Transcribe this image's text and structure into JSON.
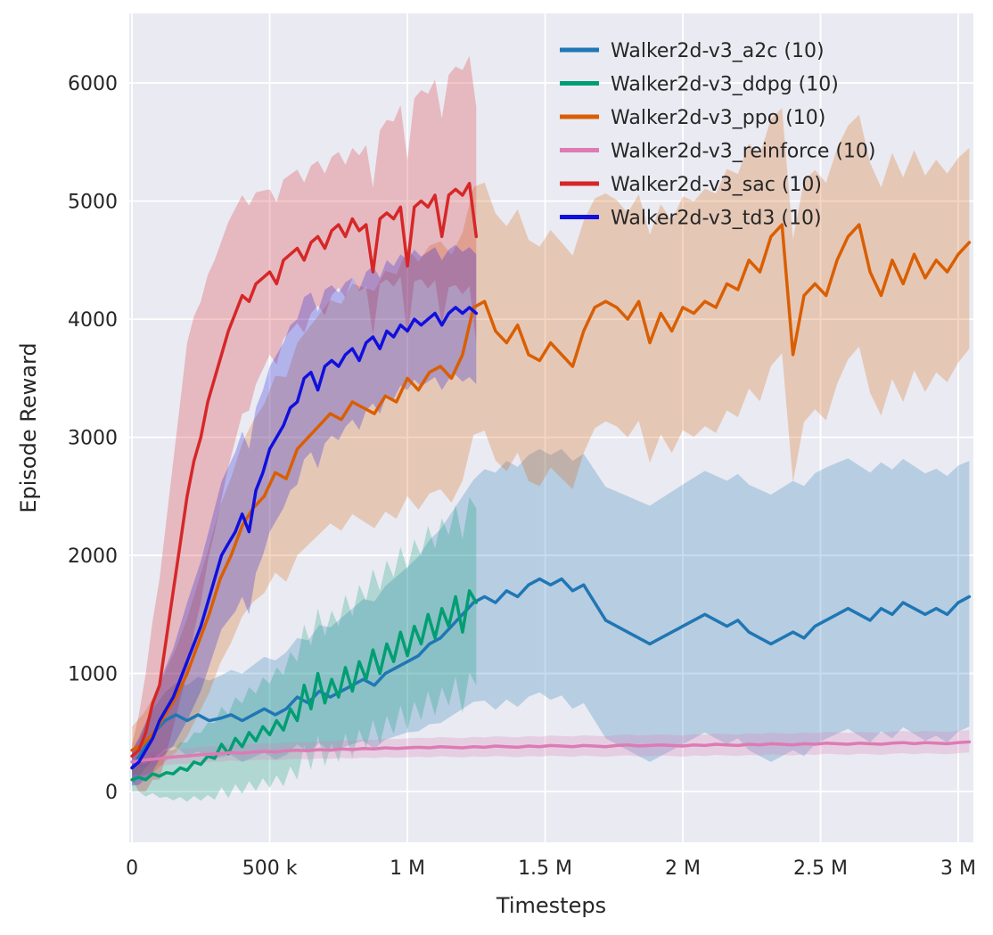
{
  "chart_data": {
    "type": "line",
    "title": "",
    "xlabel": "Timesteps",
    "ylabel": "Episode Reward",
    "x_values_unit": "millions of timesteps",
    "xlim": [
      -0.01,
      3.055
    ],
    "ylim": [
      -430,
      6590
    ],
    "grid": true,
    "legend_position": "upper right",
    "axes_background": "#eaeaf2",
    "grid_color": "#ffffff",
    "text_color": "#262626",
    "band_opacity": 0.25,
    "xticks": [
      {
        "v": 0,
        "label": "0"
      },
      {
        "v": 0.5,
        "label": "500 k"
      },
      {
        "v": 1,
        "label": "1 M"
      },
      {
        "v": 1.5,
        "label": "1.5 M"
      },
      {
        "v": 2,
        "label": "2 M"
      },
      {
        "v": 2.5,
        "label": "2.5 M"
      },
      {
        "v": 3,
        "label": "3 M"
      }
    ],
    "yticks": [
      {
        "v": 0,
        "label": "0"
      },
      {
        "v": 1000,
        "label": "1000"
      },
      {
        "v": 2000,
        "label": "2000"
      },
      {
        "v": 3000,
        "label": "3000"
      },
      {
        "v": 4000,
        "label": "4000"
      },
      {
        "v": 5000,
        "label": "5000"
      },
      {
        "v": 6000,
        "label": "6000"
      }
    ],
    "series": [
      {
        "key": "a2c",
        "name": "Walker2d-v3_a2c (10)",
        "color": "#1f77b4",
        "x0": 0,
        "dx": 0.04,
        "y": [
          200,
          350,
          500,
          600,
          650,
          600,
          650,
          600,
          620,
          650,
          600,
          650,
          700,
          650,
          700,
          800,
          750,
          850,
          800,
          850,
          900,
          950,
          900,
          1000,
          1050,
          1100,
          1150,
          1250,
          1300,
          1400,
          1500,
          1600,
          1650,
          1600,
          1700,
          1650,
          1750,
          1800,
          1750,
          1800,
          1700,
          1750,
          1600,
          1450,
          1400,
          1350,
          1300,
          1250,
          1300,
          1350,
          1400,
          1450,
          1500,
          1450,
          1400,
          1450,
          1350,
          1300,
          1250,
          1300,
          1350,
          1300,
          1400,
          1450,
          1500,
          1550,
          1500,
          1450,
          1550,
          1500,
          1600,
          1550,
          1500,
          1550,
          1500,
          1600,
          1650
        ],
        "band": {
          "bx": [
            0,
            0.2,
            0.6,
            1.0,
            1.3,
            1.6,
            2.0,
            2.5,
            3.04
          ],
          "wlo": [
            150,
            300,
            400,
            600,
            900,
            1000,
            1000,
            1000,
            1100
          ],
          "whi": [
            150,
            300,
            500,
            800,
            1100,
            1100,
            1200,
            1300,
            1150
          ]
        }
      },
      {
        "key": "ddpg",
        "name": "Walker2d-v3_ddpg (10)",
        "color": "#029e73",
        "x0": 0,
        "dx": 0.025,
        "y": [
          100,
          120,
          100,
          150,
          130,
          160,
          150,
          200,
          180,
          250,
          230,
          300,
          280,
          400,
          320,
          450,
          380,
          500,
          430,
          550,
          480,
          600,
          520,
          700,
          600,
          900,
          700,
          1000,
          750,
          950,
          800,
          1050,
          850,
          1100,
          950,
          1200,
          1000,
          1250,
          1100,
          1350,
          1150,
          1400,
          1250,
          1500,
          1300,
          1550,
          1400,
          1650,
          1350,
          1700,
          1600
        ],
        "band": {
          "bx": [
            0,
            0.3,
            0.6,
            0.9,
            1.25
          ],
          "wlo": [
            100,
            350,
            500,
            600,
            700
          ],
          "whi": [
            100,
            300,
            500,
            700,
            800
          ]
        }
      },
      {
        "key": "ppo",
        "name": "Walker2d-v3_ppo (10)",
        "color": "#d95f02",
        "x0": 0,
        "dx": 0.04,
        "y": [
          350,
          400,
          500,
          650,
          800,
          1000,
          1250,
          1500,
          1800,
          2000,
          2250,
          2400,
          2500,
          2700,
          2650,
          2900,
          3000,
          3100,
          3200,
          3150,
          3300,
          3250,
          3200,
          3350,
          3300,
          3500,
          3400,
          3550,
          3600,
          3500,
          3700,
          4100,
          4150,
          3900,
          3800,
          3950,
          3700,
          3650,
          3800,
          3700,
          3600,
          3900,
          4100,
          4150,
          4100,
          4000,
          4150,
          3800,
          4050,
          3900,
          4100,
          4050,
          4150,
          4100,
          4300,
          4250,
          4500,
          4400,
          4700,
          4800,
          3700,
          4200,
          4300,
          4200,
          4500,
          4700,
          4800,
          4400,
          4200,
          4500,
          4300,
          4550,
          4350,
          4500,
          4400,
          4550,
          4650
        ],
        "band": {
          "bx": [
            0,
            0.3,
            0.6,
            1.0,
            1.3,
            1.8,
            2.3,
            2.8,
            3.04
          ],
          "wlo": [
            200,
            700,
            900,
            1000,
            1100,
            1000,
            1100,
            1000,
            900
          ],
          "whi": [
            200,
            600,
            900,
            1100,
            1000,
            900,
            1000,
            900,
            800
          ]
        }
      },
      {
        "key": "reinforce",
        "name": "Walker2d-v3_reinforce (10)",
        "color": "#dd7bb4",
        "x0": 0,
        "dx": 0.04,
        "y": [
          250,
          265,
          275,
          285,
          295,
          300,
          310,
          315,
          320,
          330,
          325,
          335,
          340,
          335,
          345,
          350,
          345,
          355,
          350,
          360,
          355,
          365,
          360,
          370,
          365,
          370,
          375,
          370,
          380,
          375,
          370,
          380,
          375,
          385,
          380,
          375,
          385,
          380,
          390,
          385,
          380,
          390,
          385,
          380,
          390,
          395,
          385,
          390,
          395,
          390,
          385,
          395,
          390,
          400,
          395,
          390,
          400,
          395,
          405,
          400,
          395,
          405,
          400,
          410,
          405,
          400,
          410,
          405,
          400,
          410,
          415,
          405,
          415,
          410,
          405,
          415,
          420
        ],
        "band": {
          "bx": [
            0,
            1.0,
            2.0,
            3.04
          ],
          "wlo": [
            60,
            80,
            90,
            90
          ],
          "whi": [
            60,
            80,
            90,
            100
          ]
        }
      },
      {
        "key": "sac",
        "name": "Walker2d-v3_sac (10)",
        "color": "#d62728",
        "x0": 0,
        "dx": 0.025,
        "y": [
          300,
          350,
          500,
          750,
          900,
          1300,
          1700,
          2100,
          2500,
          2800,
          3000,
          3300,
          3500,
          3700,
          3900,
          4050,
          4200,
          4150,
          4300,
          4350,
          4400,
          4300,
          4500,
          4550,
          4600,
          4500,
          4650,
          4700,
          4600,
          4750,
          4800,
          4700,
          4850,
          4750,
          4800,
          4400,
          4850,
          4900,
          4850,
          4950,
          4450,
          4950,
          5000,
          4950,
          5050,
          4700,
          5050,
          5100,
          5050,
          5150,
          4700
        ],
        "band": {
          "bx": [
            0,
            0.1,
            0.2,
            0.3,
            0.5,
            0.8,
            1.0,
            1.25
          ],
          "wlo": [
            200,
            800,
            1500,
            1300,
            700,
            500,
            600,
            900
          ],
          "whi": [
            100,
            900,
            1300,
            1000,
            700,
            600,
            900,
            1100
          ]
        }
      },
      {
        "key": "td3",
        "name": "Walker2d-v3_td3 (10)",
        "color": "#1010dd",
        "x0": 0,
        "dx": 0.025,
        "y": [
          200,
          250,
          350,
          450,
          600,
          700,
          800,
          950,
          1100,
          1250,
          1400,
          1600,
          1800,
          2000,
          2100,
          2200,
          2350,
          2200,
          2550,
          2700,
          2900,
          3000,
          3100,
          3250,
          3300,
          3500,
          3550,
          3400,
          3600,
          3650,
          3600,
          3700,
          3750,
          3650,
          3800,
          3850,
          3750,
          3900,
          3850,
          3950,
          3900,
          4000,
          3950,
          4000,
          4050,
          3950,
          4050,
          4100,
          4050,
          4100,
          4050
        ],
        "band": {
          "bx": [
            0,
            0.2,
            0.4,
            0.6,
            0.8,
            1.0,
            1.25
          ],
          "wlo": [
            150,
            500,
            700,
            700,
            600,
            500,
            600
          ],
          "whi": [
            150,
            500,
            700,
            700,
            600,
            600,
            500
          ]
        }
      }
    ]
  }
}
